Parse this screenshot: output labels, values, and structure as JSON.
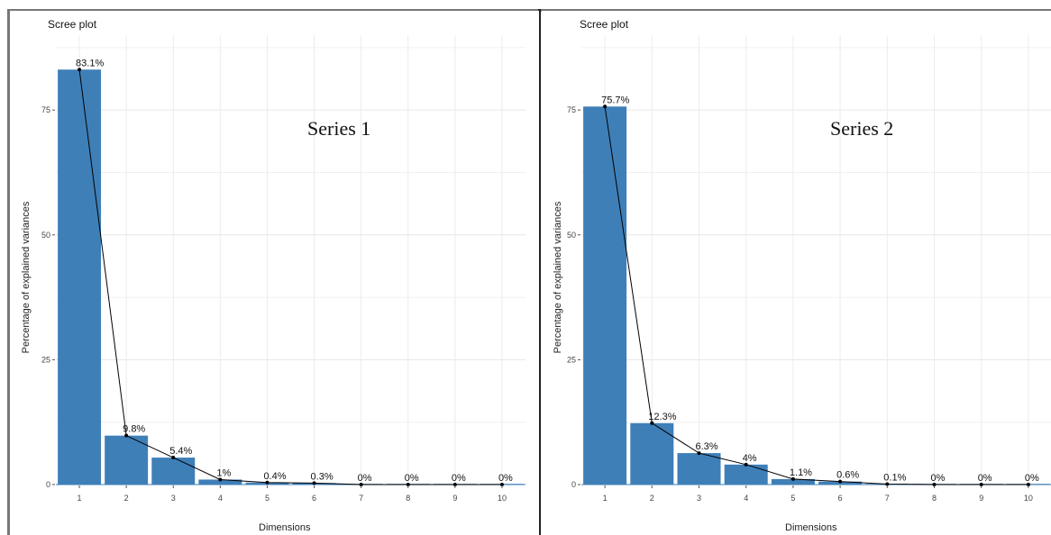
{
  "chart_data": [
    {
      "type": "bar",
      "title": "Scree plot",
      "annotation": "Series 1",
      "xlabel": "Dimensions",
      "ylabel": "Percentage of explained variances",
      "categories": [
        "1",
        "2",
        "3",
        "4",
        "5",
        "6",
        "7",
        "8",
        "9",
        "10"
      ],
      "values": [
        83.1,
        9.8,
        5.4,
        1.0,
        0.4,
        0.3,
        0,
        0,
        0,
        0
      ],
      "value_labels": [
        "83.1%",
        "9.8%",
        "5.4%",
        "1%",
        "0.4%",
        "0.3%",
        "0%",
        "0%",
        "0%",
        "0%"
      ],
      "yticks": [
        0,
        25,
        50,
        75
      ],
      "ytick_labels": [
        "0",
        "25",
        "50",
        "75"
      ],
      "ylim": [
        0,
        90
      ],
      "line_overlay": true,
      "grid": true,
      "bar_color": "#3f7fb8",
      "line_color": "#000000"
    },
    {
      "type": "bar",
      "title": "Scree plot",
      "annotation": "Series 2",
      "xlabel": "Dimensions",
      "ylabel": "Percentage of explained variances",
      "categories": [
        "1",
        "2",
        "3",
        "4",
        "5",
        "6",
        "7",
        "8",
        "9",
        "10"
      ],
      "values": [
        75.7,
        12.3,
        6.3,
        4.0,
        1.1,
        0.6,
        0.1,
        0,
        0,
        0
      ],
      "value_labels": [
        "75.7%",
        "12.3%",
        "6.3%",
        "4%",
        "1.1%",
        "0.6%",
        "0.1%",
        "0%",
        "0%",
        "0%"
      ],
      "yticks": [
        0,
        25,
        50,
        75
      ],
      "ytick_labels": [
        "0",
        "25",
        "50",
        "75"
      ],
      "ylim": [
        0,
        90
      ],
      "line_overlay": true,
      "grid": true,
      "bar_color": "#3f7fb8",
      "line_color": "#000000"
    }
  ]
}
